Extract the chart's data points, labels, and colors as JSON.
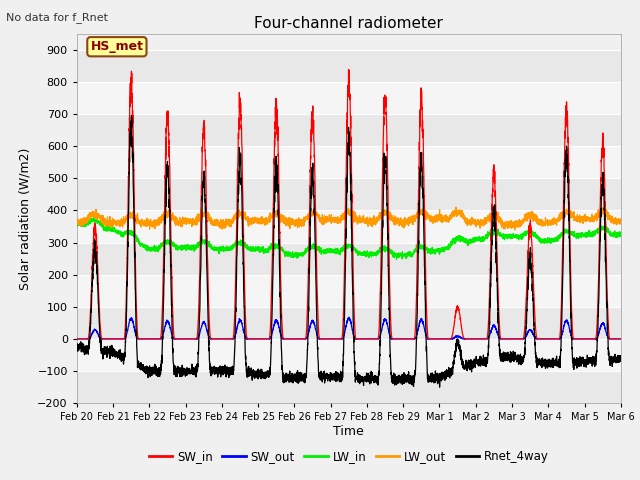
{
  "title": "Four-channel radiometer",
  "subtitle": "No data for f_Rnet",
  "xlabel": "Time",
  "ylabel": "Solar radiation (W/m2)",
  "ylim": [
    -200,
    950
  ],
  "yticks": [
    -200,
    -100,
    0,
    100,
    200,
    300,
    400,
    500,
    600,
    700,
    800,
    900
  ],
  "fig_bg_color": "#f0f0f0",
  "plot_bg_color": "#f0f0f0",
  "band_colors": [
    "#e8e8e8",
    "#f5f5f5"
  ],
  "grid_color": "#e0e0e0",
  "station_label": "HS_met",
  "station_label_color": "#8B0000",
  "station_box_facecolor": "#ffff99",
  "station_box_edgecolor": "#8B4513",
  "x_tick_labels": [
    "Feb 20",
    "Feb 21",
    "Feb 22",
    "Feb 23",
    "Feb 24",
    "Feb 25",
    "Feb 26",
    "Feb 27",
    "Feb 28",
    "Feb 29",
    "Mar 1",
    "Mar 2",
    "Mar 3",
    "Mar 4",
    "Mar 5",
    "Mar 6"
  ],
  "colors": {
    "SW_in": "#ff0000",
    "SW_out": "#0000ff",
    "LW_in": "#00ee00",
    "LW_out": "#ff9900",
    "Rnet_4way": "#000000"
  },
  "legend_entries": [
    "SW_in",
    "SW_out",
    "LW_in",
    "LW_out",
    "Rnet_4way"
  ]
}
